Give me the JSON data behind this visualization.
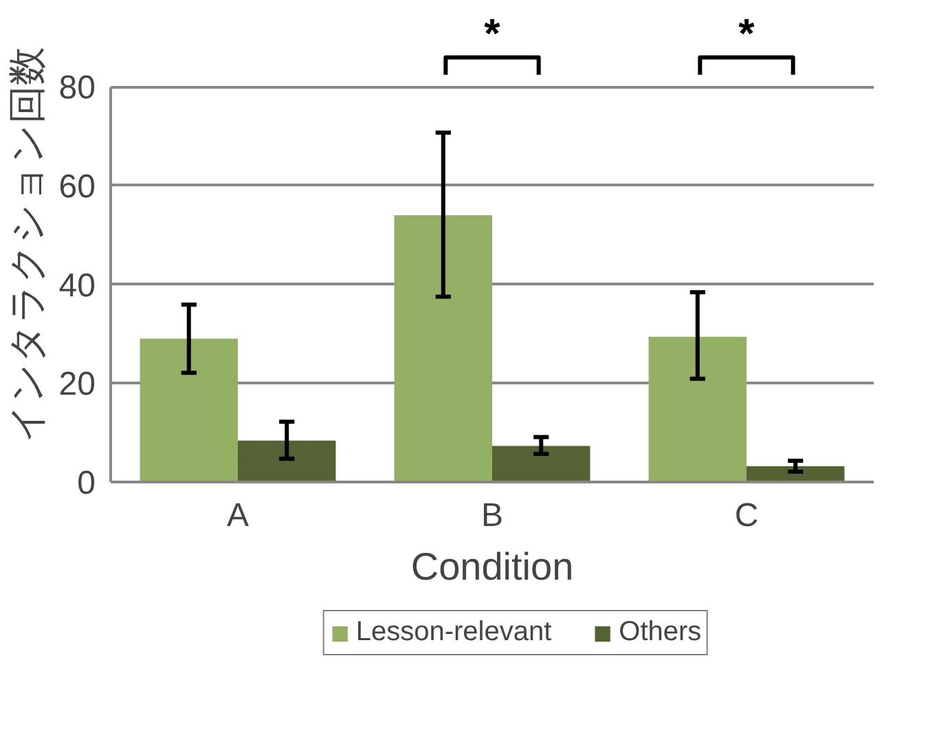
{
  "chart_data": {
    "type": "bar",
    "xlabel": "Condition",
    "ylabel": "インタラクション回数",
    "categories": [
      "A",
      "B",
      "C"
    ],
    "series": [
      {
        "name": "Lesson-relevant",
        "color": "#93b065",
        "values": [
          29.0,
          54.0,
          29.4
        ],
        "errors": [
          [
            22.1,
            35.9
          ],
          [
            37.5,
            70.7
          ],
          [
            20.9,
            38.4
          ]
        ]
      },
      {
        "name": "Others",
        "color": "#546234",
        "values": [
          8.4,
          7.3,
          3.2
        ],
        "errors": [
          [
            4.7,
            12.2
          ],
          [
            5.7,
            9.1
          ],
          [
            2.1,
            4.3
          ]
        ]
      }
    ],
    "ylim": [
      0,
      80
    ],
    "yticks": [
      0,
      20,
      40,
      60,
      80
    ],
    "grid": "y",
    "legend": "bottom",
    "annotations": [
      "*",
      "*"
    ]
  }
}
